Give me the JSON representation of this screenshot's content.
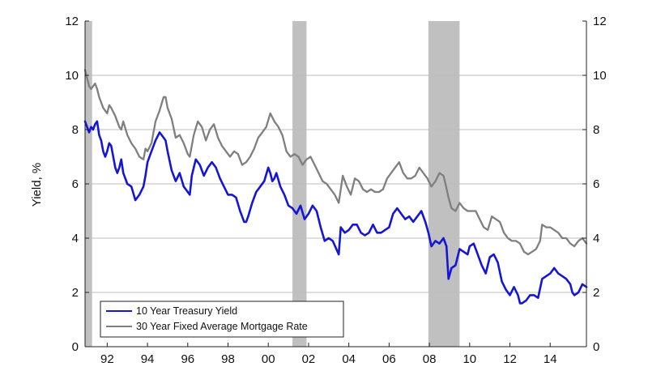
{
  "chart_data": {
    "type": "line",
    "title": "",
    "xlabel": "",
    "ylabel": "Yield, %",
    "ylim": [
      0,
      12
    ],
    "xlim": [
      1990.9,
      2015.8
    ],
    "yticks": [
      0,
      2,
      4,
      6,
      8,
      10,
      12
    ],
    "xticks": [
      {
        "value": 1992,
        "label": "92"
      },
      {
        "value": 1994,
        "label": "94"
      },
      {
        "value": 1996,
        "label": "96"
      },
      {
        "value": 1998,
        "label": "98"
      },
      {
        "value": 2000,
        "label": "00"
      },
      {
        "value": 2002,
        "label": "02"
      },
      {
        "value": 2004,
        "label": "04"
      },
      {
        "value": 2006,
        "label": "06"
      },
      {
        "value": 2008,
        "label": "08"
      },
      {
        "value": 2010,
        "label": "10"
      },
      {
        "value": 2012,
        "label": "12"
      },
      {
        "value": 2014,
        "label": "14"
      }
    ],
    "grid": true,
    "legend_position": "bottom-left",
    "recessions": [
      {
        "start": 1990.9,
        "end": 1991.25
      },
      {
        "start": 2001.2,
        "end": 2001.9
      },
      {
        "start": 2007.95,
        "end": 2009.5
      }
    ],
    "series": [
      {
        "name": "10 Year Treasury Yield",
        "color": "#1515d6",
        "x": [
          1990.9,
          1991.0,
          1991.1,
          1991.2,
          1991.3,
          1991.4,
          1991.5,
          1991.6,
          1991.7,
          1991.8,
          1991.9,
          1992.0,
          1992.1,
          1992.2,
          1992.3,
          1992.4,
          1992.5,
          1992.6,
          1992.7,
          1992.8,
          1993.0,
          1993.2,
          1993.4,
          1993.6,
          1993.8,
          1993.9,
          1994.0,
          1994.2,
          1994.4,
          1994.6,
          1994.8,
          1994.9,
          1995.0,
          1995.2,
          1995.4,
          1995.6,
          1995.8,
          1996.0,
          1996.1,
          1996.2,
          1996.4,
          1996.6,
          1996.8,
          1997.0,
          1997.2,
          1997.4,
          1997.6,
          1997.8,
          1998.0,
          1998.2,
          1998.4,
          1998.6,
          1998.8,
          1998.9,
          1999.0,
          1999.2,
          1999.4,
          1999.6,
          1999.8,
          2000.0,
          2000.1,
          2000.2,
          2000.3,
          2000.4,
          2000.6,
          2000.8,
          2001.0,
          2001.2,
          2001.4,
          2001.6,
          2001.8,
          2002.0,
          2002.2,
          2002.4,
          2002.6,
          2002.8,
          2003.0,
          2003.2,
          2003.5,
          2003.6,
          2003.8,
          2004.0,
          2004.2,
          2004.4,
          2004.6,
          2004.8,
          2005.0,
          2005.2,
          2005.4,
          2005.6,
          2005.8,
          2006.0,
          2006.2,
          2006.4,
          2006.6,
          2006.8,
          2007.0,
          2007.2,
          2007.4,
          2007.6,
          2007.8,
          2007.95,
          2008.1,
          2008.3,
          2008.5,
          2008.7,
          2008.85,
          2008.95,
          2009.1,
          2009.3,
          2009.5,
          2009.7,
          2009.9,
          2010.0,
          2010.2,
          2010.4,
          2010.6,
          2010.8,
          2011.0,
          2011.2,
          2011.4,
          2011.6,
          2011.8,
          2012.0,
          2012.2,
          2012.4,
          2012.5,
          2012.6,
          2012.8,
          2013.0,
          2013.2,
          2013.4,
          2013.6,
          2013.8,
          2014.0,
          2014.2,
          2014.4,
          2014.6,
          2014.8,
          2015.0,
          2015.1,
          2015.2,
          2015.4,
          2015.6,
          2015.8
        ],
        "values": [
          8.3,
          8.1,
          7.9,
          8.1,
          8.0,
          8.2,
          8.3,
          7.8,
          7.6,
          7.2,
          7.0,
          7.2,
          7.5,
          7.4,
          7.0,
          6.6,
          6.4,
          6.6,
          6.9,
          6.4,
          6.0,
          5.9,
          5.4,
          5.6,
          5.9,
          6.3,
          6.8,
          7.2,
          7.6,
          7.9,
          7.7,
          7.6,
          7.2,
          6.5,
          6.1,
          6.4,
          5.9,
          5.7,
          5.6,
          6.3,
          6.9,
          6.7,
          6.3,
          6.6,
          6.8,
          6.6,
          6.2,
          5.9,
          5.6,
          5.6,
          5.5,
          5.0,
          4.6,
          4.6,
          4.8,
          5.3,
          5.7,
          5.9,
          6.1,
          6.6,
          6.4,
          6.1,
          6.2,
          6.4,
          5.9,
          5.6,
          5.2,
          5.1,
          4.9,
          5.2,
          4.7,
          4.9,
          5.2,
          5.0,
          4.4,
          3.9,
          4.0,
          3.9,
          3.4,
          4.4,
          4.2,
          4.3,
          4.5,
          4.5,
          4.2,
          4.1,
          4.2,
          4.5,
          4.2,
          4.2,
          4.3,
          4.4,
          4.9,
          5.1,
          4.9,
          4.7,
          4.8,
          4.6,
          4.8,
          5.0,
          4.6,
          4.2,
          3.7,
          3.9,
          3.8,
          4.0,
          3.7,
          2.5,
          2.9,
          3.0,
          3.6,
          3.5,
          3.4,
          3.7,
          3.8,
          3.4,
          3.0,
          2.7,
          3.3,
          3.4,
          3.1,
          2.4,
          2.1,
          1.9,
          2.2,
          1.9,
          1.6,
          1.6,
          1.7,
          1.9,
          1.9,
          1.8,
          2.5,
          2.6,
          2.7,
          2.9,
          2.7,
          2.6,
          2.5,
          2.3,
          2.0,
          1.9,
          2.0,
          2.3,
          2.2
        ]
      },
      {
        "name": "30 Year Fixed Average Mortgage Rate",
        "color": "#7f7f7f",
        "x": [
          1990.9,
          1991.0,
          1991.1,
          1991.2,
          1991.3,
          1991.4,
          1991.5,
          1991.6,
          1991.8,
          1992.0,
          1992.1,
          1992.2,
          1992.4,
          1992.6,
          1992.7,
          1992.8,
          1993.0,
          1993.2,
          1993.4,
          1993.6,
          1993.8,
          1993.9,
          1994.0,
          1994.2,
          1994.4,
          1994.6,
          1994.8,
          1994.9,
          1995.0,
          1995.2,
          1995.4,
          1995.6,
          1995.8,
          1996.0,
          1996.1,
          1996.3,
          1996.5,
          1996.7,
          1996.9,
          1997.1,
          1997.3,
          1997.5,
          1997.7,
          1997.9,
          1998.1,
          1998.3,
          1998.5,
          1998.7,
          1998.9,
          1999.1,
          1999.3,
          1999.5,
          1999.7,
          1999.9,
          2000.1,
          2000.3,
          2000.5,
          2000.7,
          2000.9,
          2001.1,
          2001.3,
          2001.5,
          2001.7,
          2001.9,
          2002.1,
          2002.3,
          2002.5,
          2002.7,
          2002.9,
          2003.1,
          2003.3,
          2003.5,
          2003.7,
          2003.9,
          2004.1,
          2004.3,
          2004.5,
          2004.7,
          2004.9,
          2005.1,
          2005.3,
          2005.5,
          2005.7,
          2005.9,
          2006.1,
          2006.3,
          2006.5,
          2006.7,
          2006.9,
          2007.1,
          2007.3,
          2007.5,
          2007.7,
          2007.9,
          2008.1,
          2008.3,
          2008.5,
          2008.7,
          2008.8,
          2008.95,
          2009.1,
          2009.3,
          2009.5,
          2009.7,
          2009.9,
          2010.1,
          2010.3,
          2010.5,
          2010.7,
          2010.9,
          2011.1,
          2011.3,
          2011.5,
          2011.7,
          2011.9,
          2012.1,
          2012.3,
          2012.5,
          2012.7,
          2012.9,
          2013.1,
          2013.3,
          2013.5,
          2013.6,
          2013.8,
          2014.0,
          2014.2,
          2014.4,
          2014.6,
          2014.8,
          2015.0,
          2015.2,
          2015.4,
          2015.6,
          2015.8
        ],
        "values": [
          10.2,
          9.9,
          9.6,
          9.5,
          9.6,
          9.7,
          9.5,
          9.2,
          8.8,
          8.6,
          8.9,
          8.8,
          8.5,
          8.1,
          8.0,
          8.3,
          7.8,
          7.5,
          7.3,
          7.0,
          6.9,
          7.3,
          7.2,
          7.5,
          8.3,
          8.7,
          9.2,
          9.2,
          8.8,
          8.4,
          7.7,
          7.8,
          7.5,
          7.1,
          7.0,
          7.8,
          8.3,
          8.1,
          7.6,
          8.0,
          8.2,
          7.7,
          7.4,
          7.2,
          7.0,
          7.2,
          7.1,
          6.7,
          6.8,
          7.0,
          7.3,
          7.7,
          7.9,
          8.1,
          8.6,
          8.3,
          8.1,
          7.8,
          7.2,
          7.0,
          7.1,
          7.0,
          6.7,
          6.9,
          7.0,
          6.7,
          6.4,
          6.1,
          6.0,
          5.8,
          5.6,
          5.3,
          6.3,
          5.9,
          5.6,
          6.2,
          6.1,
          5.8,
          5.7,
          5.8,
          5.7,
          5.7,
          5.8,
          6.2,
          6.4,
          6.6,
          6.8,
          6.4,
          6.2,
          6.2,
          6.3,
          6.6,
          6.4,
          6.2,
          5.9,
          6.1,
          6.4,
          6.3,
          6.0,
          5.5,
          5.1,
          5.0,
          5.3,
          5.1,
          5.0,
          5.0,
          5.0,
          4.7,
          4.4,
          4.3,
          4.8,
          4.7,
          4.6,
          4.2,
          4.0,
          3.9,
          3.9,
          3.8,
          3.5,
          3.4,
          3.5,
          3.6,
          3.9,
          4.5,
          4.4,
          4.4,
          4.3,
          4.2,
          4.0,
          4.0,
          3.8,
          3.7,
          3.9,
          4.0,
          3.8
        ]
      }
    ]
  }
}
